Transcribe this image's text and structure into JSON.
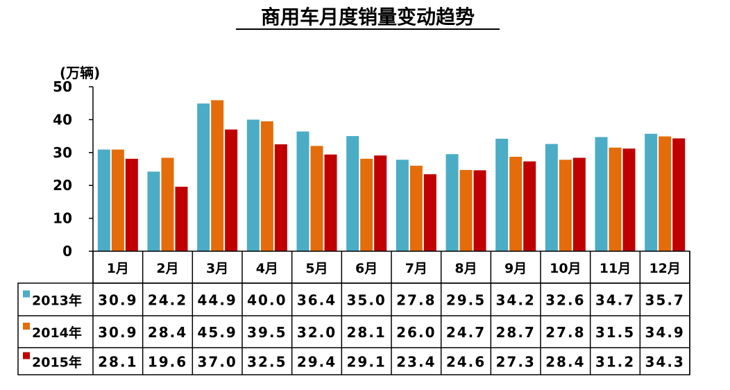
{
  "chart_data": {
    "type": "bar",
    "title": "商用车月度销量变动趋势",
    "ylabel": "(万辆)",
    "ylim": [
      0,
      50
    ],
    "yticks": [
      "0",
      "10",
      "20",
      "30",
      "40",
      "50"
    ],
    "grid": false,
    "legend": "table-left",
    "categories": [
      "1月",
      "2月",
      "3月",
      "4月",
      "5月",
      "6月",
      "7月",
      "8月",
      "9月",
      "10月",
      "11月",
      "12月"
    ],
    "series": [
      {
        "name": "2013年",
        "color": "#4BACC6",
        "values": [
          30.9,
          24.2,
          44.9,
          40.0,
          36.4,
          35.0,
          27.8,
          29.5,
          34.2,
          32.6,
          34.7,
          35.7
        ],
        "labels": [
          "30.9",
          "24.2",
          "44.9",
          "40.0",
          "36.4",
          "35.0",
          "27.8",
          "29.5",
          "34.2",
          "32.6",
          "34.7",
          "35.7"
        ]
      },
      {
        "name": "2014年",
        "color": "#E46C0A",
        "values": [
          30.9,
          28.4,
          45.9,
          39.5,
          32.0,
          28.1,
          26.0,
          24.7,
          28.7,
          27.8,
          31.5,
          34.9
        ],
        "labels": [
          "30.9",
          "28.4",
          "45.9",
          "39.5",
          "32.0",
          "28.1",
          "26.0",
          "24.7",
          "28.7",
          "27.8",
          "31.5",
          "34.9"
        ]
      },
      {
        "name": "2015年",
        "color": "#C00000",
        "values": [
          28.1,
          19.6,
          37.0,
          32.5,
          29.4,
          29.1,
          23.4,
          24.6,
          27.3,
          28.4,
          31.2,
          34.3
        ],
        "labels": [
          "28.1",
          "19.6",
          "37.0",
          "32.5",
          "29.4",
          "29.1",
          "23.4",
          "24.6",
          "27.3",
          "28.4",
          "31.2",
          "34.3"
        ]
      }
    ]
  }
}
